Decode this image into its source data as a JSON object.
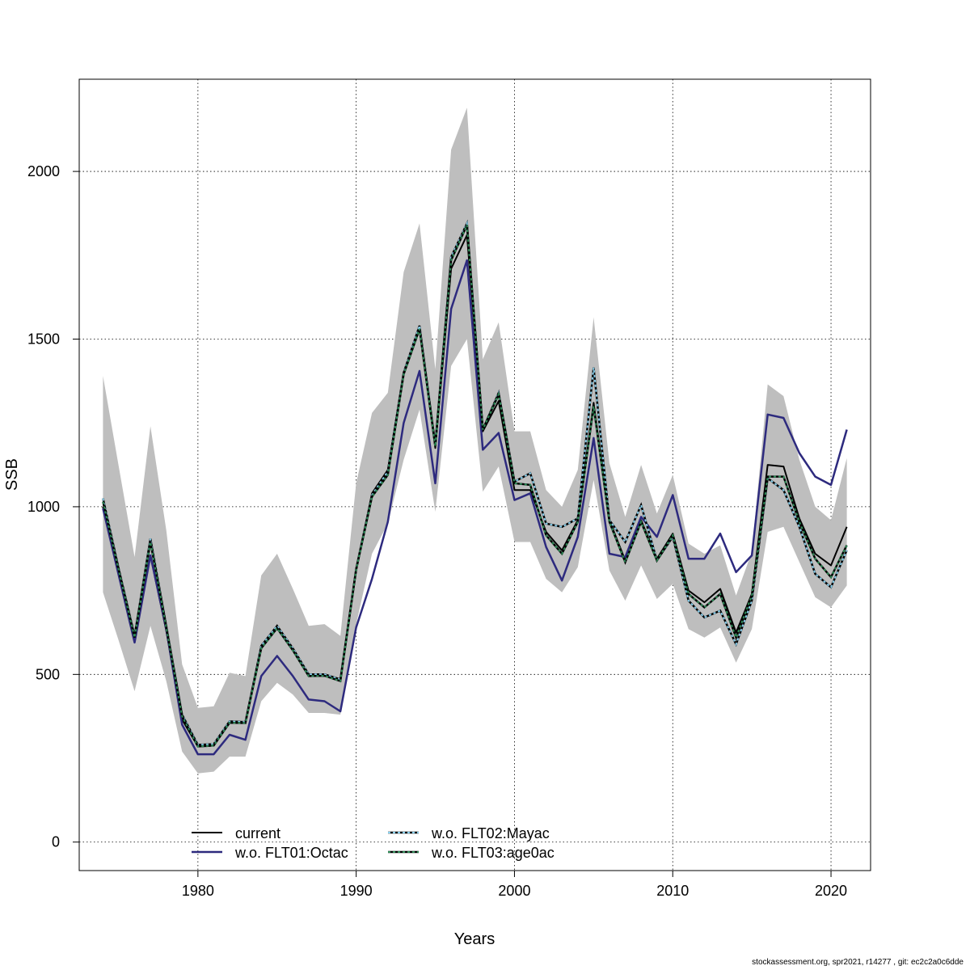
{
  "chart_data": {
    "type": "line",
    "xlabel": "Years",
    "ylabel": "SSB",
    "xlim": [
      1972.5,
      2022.5
    ],
    "ylim": [
      -85,
      2275
    ],
    "xticks": [
      1980,
      1990,
      2000,
      2010,
      2020
    ],
    "yticks": [
      0,
      500,
      1000,
      1500,
      2000
    ],
    "grid": true,
    "legend_position": "bottom-center",
    "years": [
      1974,
      1975,
      1976,
      1977,
      1978,
      1979,
      1980,
      1981,
      1982,
      1983,
      1984,
      1985,
      1986,
      1987,
      1988,
      1989,
      1990,
      1991,
      1992,
      1993,
      1994,
      1995,
      1996,
      1997,
      1998,
      1999,
      2000,
      2001,
      2002,
      2003,
      2004,
      2005,
      2006,
      2007,
      2008,
      2009,
      2010,
      2011,
      2012,
      2013,
      2014,
      2015,
      2016,
      2017,
      2018,
      2019,
      2020,
      2021
    ],
    "band": {
      "color": "#bebebe",
      "upper": [
        1390,
        1120,
        850,
        1240,
        930,
        530,
        400,
        405,
        505,
        495,
        795,
        860,
        755,
        645,
        650,
        615,
        1070,
        1280,
        1340,
        1700,
        1845,
        1410,
        2065,
        2190,
        1440,
        1550,
        1225,
        1225,
        1050,
        1000,
        1110,
        1565,
        1130,
        970,
        1125,
        980,
        1095,
        890,
        860,
        885,
        735,
        865,
        1365,
        1330,
        1140,
        1000,
        960,
        1145
      ],
      "lower": [
        745,
        600,
        450,
        645,
        480,
        270,
        205,
        210,
        255,
        255,
        420,
        475,
        440,
        385,
        385,
        380,
        650,
        860,
        950,
        1140,
        1290,
        985,
        1420,
        1500,
        1045,
        1120,
        895,
        895,
        785,
        745,
        820,
        1080,
        810,
        720,
        825,
        725,
        770,
        635,
        610,
        640,
        535,
        635,
        925,
        940,
        835,
        730,
        700,
        765
      ]
    },
    "series": [
      {
        "name": "current",
        "color": "#000000",
        "dash": "solid",
        "width": 2,
        "values": [
          1000,
          800,
          605,
          855,
          630,
          365,
          285,
          288,
          360,
          358,
          580,
          640,
          575,
          500,
          500,
          485,
          810,
          1040,
          1110,
          1400,
          1535,
          1175,
          1710,
          1810,
          1225,
          1315,
          1050,
          1050,
          925,
          870,
          960,
          1310,
          960,
          840,
          960,
          845,
          920,
          750,
          715,
          755,
          625,
          740,
          1125,
          1120,
          965,
          860,
          825,
          940
        ]
      },
      {
        "name": "w.o. FLT01:Octac",
        "color": "#2d2a7e",
        "dash": "solid",
        "width": 2.5,
        "values": [
          995,
          795,
          595,
          855,
          635,
          350,
          262,
          262,
          320,
          305,
          495,
          555,
          495,
          425,
          420,
          390,
          640,
          785,
          955,
          1250,
          1405,
          1070,
          1590,
          1735,
          1170,
          1220,
          1020,
          1040,
          880,
          780,
          910,
          1205,
          860,
          850,
          970,
          910,
          1035,
          845,
          845,
          920,
          805,
          855,
          1275,
          1265,
          1160,
          1090,
          1065,
          1230
        ]
      },
      {
        "name": "w.o. FLT02:Mayac",
        "color": "#87ceeb",
        "dash": "dotted",
        "width": 2,
        "values": [
          1025,
          815,
          615,
          905,
          645,
          380,
          290,
          292,
          360,
          358,
          585,
          645,
          578,
          500,
          500,
          485,
          815,
          1035,
          1105,
          1400,
          1540,
          1185,
          1745,
          1845,
          1230,
          1340,
          1075,
          1100,
          950,
          940,
          965,
          1415,
          960,
          895,
          1005,
          840,
          910,
          720,
          670,
          690,
          590,
          720,
          1085,
          1050,
          940,
          800,
          760,
          870
        ]
      },
      {
        "name": "w.o. FLT03:age0ac",
        "color": "#2e8b57",
        "dash": "dotted",
        "width": 2,
        "values": [
          1015,
          810,
          610,
          895,
          640,
          375,
          285,
          288,
          356,
          355,
          578,
          638,
          572,
          495,
          496,
          480,
          812,
          1030,
          1095,
          1395,
          1530,
          1180,
          1735,
          1840,
          1230,
          1335,
          1070,
          1065,
          915,
          860,
          955,
          1300,
          955,
          835,
          955,
          840,
          915,
          740,
          700,
          740,
          610,
          735,
          1090,
          1090,
          955,
          845,
          790,
          885
        ]
      }
    ]
  },
  "footer": "stockassessment.org, spr2021, r14277 , git: ec2c2a0c6dde"
}
